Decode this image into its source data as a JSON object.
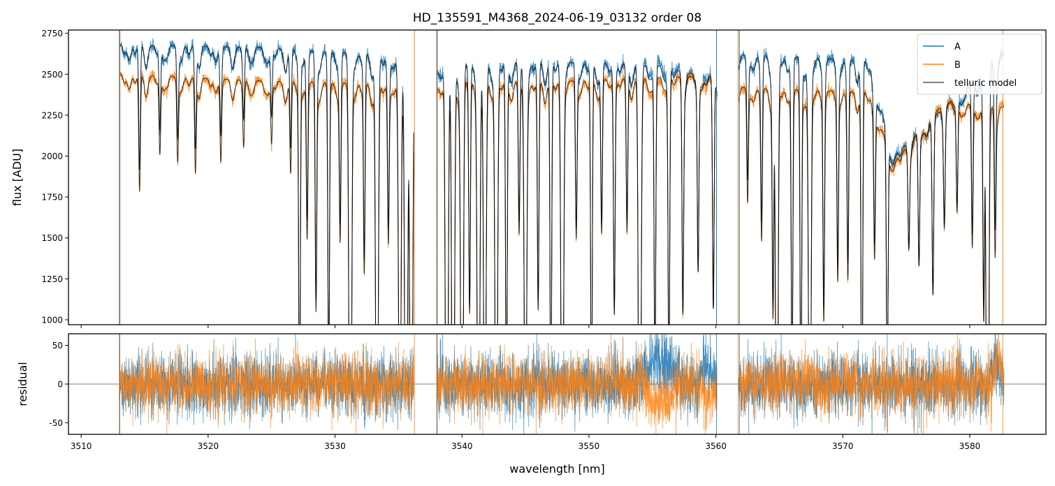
{
  "chart_data": [
    {
      "type": "line",
      "title": "HD_135591_M4368_2024-06-19_03132  order 08",
      "xlabel": "",
      "ylabel": "flux [ADU]",
      "xlim": [
        3509.0,
        3586.0
      ],
      "ylim": [
        970,
        2770
      ],
      "yticks": [
        1000,
        1250,
        1500,
        1750,
        2000,
        2250,
        2500,
        2750
      ],
      "legend": {
        "placement": "top-right",
        "entries": [
          "A",
          "B",
          "telluric model"
        ]
      },
      "grid": false,
      "segments": [
        [
          3513.0,
          3536.2
        ],
        [
          3538.0,
          3560.1
        ],
        [
          3561.8,
          3582.7
        ]
      ],
      "continuum": {
        "A": {
          "x": [
            3513.0,
            3524.0,
            3533.0,
            3536.0,
            3538.0,
            3546.0,
            3555.0,
            3560.0,
            3561.8,
            3568.0,
            3572.0,
            3574.0,
            3578.0,
            3582.5
          ],
          "y": [
            2680,
            2665,
            2620,
            2570,
            2560,
            2575,
            2560,
            2470,
            2620,
            2600,
            2580,
            2000,
            2300,
            2620
          ]
        },
        "B": {
          "x": [
            3513.0,
            3524.0,
            3533.0,
            3536.0,
            3538.0,
            3546.0,
            3555.0,
            3560.0,
            3561.8,
            3568.0,
            3572.0,
            3574.0,
            3578.0,
            3582.5
          ],
          "y": [
            2500,
            2460,
            2440,
            2420,
            2460,
            2450,
            2480,
            2490,
            2420,
            2400,
            2390,
            1960,
            2330,
            2300
          ]
        }
      },
      "absorption_lines": [
        {
          "x": 3514.6,
          "depth": 0.15
        },
        {
          "x": 3516.2,
          "depth": 0.1
        },
        {
          "x": 3517.6,
          "depth": 0.1
        },
        {
          "x": 3519.0,
          "depth": 0.12
        },
        {
          "x": 3521.0,
          "depth": 0.1
        },
        {
          "x": 3522.8,
          "depth": 0.08
        },
        {
          "x": 3525.0,
          "depth": 0.08
        },
        {
          "x": 3526.5,
          "depth": 0.12
        },
        {
          "x": 3527.2,
          "depth": 0.46
        },
        {
          "x": 3527.8,
          "depth": 0.2
        },
        {
          "x": 3528.5,
          "depth": 0.3
        },
        {
          "x": 3529.5,
          "depth": 0.4
        },
        {
          "x": 3530.4,
          "depth": 0.2
        },
        {
          "x": 3531.2,
          "depth": 0.75
        },
        {
          "x": 3532.3,
          "depth": 0.25
        },
        {
          "x": 3533.3,
          "depth": 0.65
        },
        {
          "x": 3534.2,
          "depth": 0.2
        },
        {
          "x": 3535.1,
          "depth": 0.55
        },
        {
          "x": 3535.6,
          "depth": 0.8
        },
        {
          "x": 3536.0,
          "depth": 0.8
        },
        {
          "x": 3538.8,
          "depth": 0.75
        },
        {
          "x": 3539.3,
          "depth": 0.75
        },
        {
          "x": 3540.0,
          "depth": 0.7
        },
        {
          "x": 3540.6,
          "depth": 0.3
        },
        {
          "x": 3541.3,
          "depth": 0.65
        },
        {
          "x": 3541.8,
          "depth": 0.55
        },
        {
          "x": 3542.7,
          "depth": 0.6
        },
        {
          "x": 3543.5,
          "depth": 0.45
        },
        {
          "x": 3544.5,
          "depth": 0.2
        },
        {
          "x": 3545.0,
          "depth": 0.55
        },
        {
          "x": 3546.0,
          "depth": 0.3
        },
        {
          "x": 3547.0,
          "depth": 0.45
        },
        {
          "x": 3547.9,
          "depth": 0.65
        },
        {
          "x": 3549.0,
          "depth": 0.2
        },
        {
          "x": 3550.2,
          "depth": 0.45
        },
        {
          "x": 3551.0,
          "depth": 0.2
        },
        {
          "x": 3552.0,
          "depth": 0.3
        },
        {
          "x": 3553.0,
          "depth": 0.2
        },
        {
          "x": 3554.0,
          "depth": 0.75
        },
        {
          "x": 3555.2,
          "depth": 0.4
        },
        {
          "x": 3556.3,
          "depth": 0.4
        },
        {
          "x": 3557.4,
          "depth": 0.3
        },
        {
          "x": 3558.6,
          "depth": 0.25
        },
        {
          "x": 3559.8,
          "depth": 0.3
        },
        {
          "x": 3562.5,
          "depth": 0.15
        },
        {
          "x": 3563.6,
          "depth": 0.2
        },
        {
          "x": 3564.5,
          "depth": 0.3
        },
        {
          "x": 3564.8,
          "depth": 0.62
        },
        {
          "x": 3566.0,
          "depth": 0.4
        },
        {
          "x": 3566.7,
          "depth": 0.45
        },
        {
          "x": 3567.4,
          "depth": 0.62
        },
        {
          "x": 3568.5,
          "depth": 0.3
        },
        {
          "x": 3569.6,
          "depth": 0.25
        },
        {
          "x": 3570.4,
          "depth": 0.25
        },
        {
          "x": 3571.5,
          "depth": 0.5
        },
        {
          "x": 3572.5,
          "depth": 0.2
        },
        {
          "x": 3573.5,
          "depth": 0.4
        },
        {
          "x": 3575.2,
          "depth": 0.15
        },
        {
          "x": 3576.0,
          "depth": 0.2
        },
        {
          "x": 3577.1,
          "depth": 0.25
        },
        {
          "x": 3578.0,
          "depth": 0.15
        },
        {
          "x": 3579.0,
          "depth": 0.15
        },
        {
          "x": 3580.2,
          "depth": 0.2
        },
        {
          "x": 3581.1,
          "depth": 0.3
        },
        {
          "x": 3581.4,
          "depth": 0.75
        },
        {
          "x": 3582.0,
          "depth": 0.2
        }
      ],
      "spikes": [
        {
          "series": "B",
          "x": 3513.0
        },
        {
          "series": "A",
          "x": 3513.05
        },
        {
          "series": "B",
          "x": 3536.25
        },
        {
          "series": "B",
          "x": 3538.0
        },
        {
          "series": "A",
          "x": 3538.05
        },
        {
          "series": "A",
          "x": 3560.05
        },
        {
          "series": "B",
          "x": 3561.75
        },
        {
          "series": "A",
          "x": 3561.85
        },
        {
          "series": "B",
          "x": 3582.6
        }
      ],
      "series": [
        {
          "name": "A",
          "color": "#1f77b4"
        },
        {
          "name": "B",
          "color": "#ff7f0e"
        },
        {
          "name": "telluric model",
          "color": "#000000"
        }
      ]
    },
    {
      "type": "line",
      "title": "",
      "xlabel": "wavelength [nm]",
      "ylabel": "residual",
      "xlim": [
        3509.0,
        3586.0
      ],
      "ylim": [
        -65,
        65
      ],
      "yticks": [
        -50,
        0,
        50
      ],
      "xticks": [
        3510,
        3520,
        3530,
        3540,
        3550,
        3560,
        3570,
        3580
      ],
      "zero_line": true,
      "residual_std": {
        "A": 22,
        "B": 20
      },
      "residual_features": [
        {
          "series": "A",
          "x": [
            3553.5,
            3557.5
          ],
          "offset": 30
        },
        {
          "series": "B",
          "x": [
            3554.0,
            3557.0
          ],
          "offset": -25
        },
        {
          "series": "A",
          "x": [
            3558.5,
            3560.0
          ],
          "offset": 25
        },
        {
          "series": "B",
          "x": [
            3558.8,
            3560.0
          ],
          "offset": -20
        },
        {
          "series": "A",
          "x": [
            3581.5,
            3582.6
          ],
          "offset": 25
        },
        {
          "series": "B",
          "x": [
            3581.8,
            3582.6
          ],
          "offset": 35
        }
      ],
      "series": [
        {
          "name": "A",
          "color": "#1f77b4"
        },
        {
          "name": "B",
          "color": "#ff7f0e"
        }
      ]
    }
  ]
}
